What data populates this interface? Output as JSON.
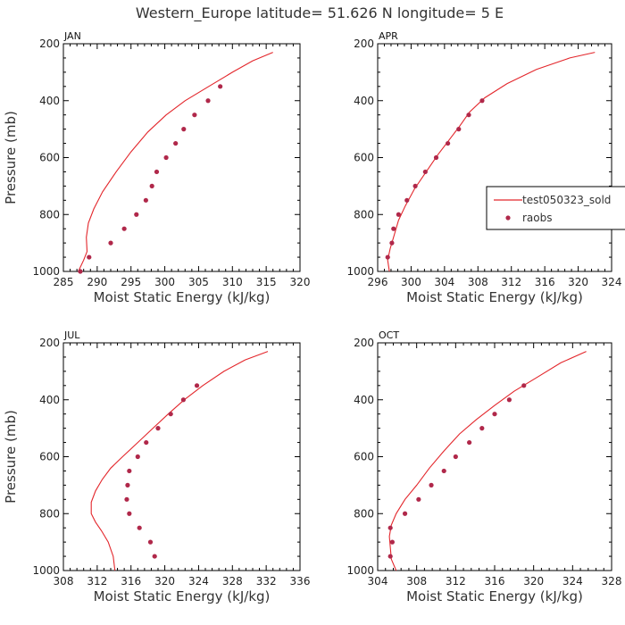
{
  "figure": {
    "title": "Western_Europe  latitude= 51.626 N longitude= 5 E"
  },
  "colors": {
    "model_line": "#e3262b",
    "raobs_marker": "#b0284a",
    "axis": "#000000"
  },
  "legend": {
    "placement": "right of APR panel, near 750 mb",
    "entries": [
      {
        "label": "test050323_sold",
        "marker": "line"
      },
      {
        "label": "raobs",
        "marker": "dot"
      }
    ]
  },
  "chart_data": [
    {
      "type": "line",
      "label": "JAN",
      "xlabel": "Moist Static Energy (kJ/kg)",
      "ylabel": "Pressure (mb)",
      "xlim": [
        285,
        320
      ],
      "ylim": [
        200,
        1000
      ],
      "y_inverted": true,
      "xticks": [
        285,
        290,
        295,
        300,
        305,
        310,
        315,
        320
      ],
      "yticks": [
        200,
        400,
        600,
        800,
        1000
      ],
      "series": [
        {
          "name": "test050323_sold",
          "kind": "line",
          "points": [
            [
              287.2,
              1000
            ],
            [
              288.0,
              960
            ],
            [
              288.5,
              930
            ],
            [
              288.4,
              880
            ],
            [
              288.7,
              830
            ],
            [
              289.5,
              780
            ],
            [
              290.8,
              720
            ],
            [
              292.8,
              650
            ],
            [
              295.0,
              580
            ],
            [
              297.5,
              510
            ],
            [
              300.2,
              450
            ],
            [
              303.0,
              400
            ],
            [
              306.5,
              350
            ],
            [
              310.0,
              300
            ],
            [
              313.0,
              260
            ],
            [
              316.0,
              230
            ]
          ]
        },
        {
          "name": "raobs",
          "kind": "scatter",
          "points": [
            [
              287.5,
              1000
            ],
            [
              288.8,
              950
            ],
            [
              292.0,
              900
            ],
            [
              294.0,
              850
            ],
            [
              295.8,
              800
            ],
            [
              297.2,
              750
            ],
            [
              298.1,
              700
            ],
            [
              298.8,
              650
            ],
            [
              300.2,
              600
            ],
            [
              301.6,
              550
            ],
            [
              302.8,
              500
            ],
            [
              304.4,
              450
            ],
            [
              306.4,
              400
            ],
            [
              308.2,
              350
            ]
          ]
        }
      ]
    },
    {
      "type": "line",
      "label": "APR",
      "xlabel": "Moist Static Energy (kJ/kg)",
      "ylabel": "",
      "xlim": [
        296,
        324
      ],
      "ylim": [
        200,
        1000
      ],
      "y_inverted": true,
      "xticks": [
        296,
        300,
        304,
        308,
        312,
        316,
        320,
        324
      ],
      "yticks": [
        200,
        400,
        600,
        800,
        1000
      ],
      "series": [
        {
          "name": "test050323_sold",
          "kind": "line",
          "points": [
            [
              297.4,
              1000
            ],
            [
              297.2,
              960
            ],
            [
              297.5,
              920
            ],
            [
              298.0,
              870
            ],
            [
              298.5,
              820
            ],
            [
              299.3,
              770
            ],
            [
              300.4,
              710
            ],
            [
              301.8,
              650
            ],
            [
              303.2,
              590
            ],
            [
              304.5,
              540
            ],
            [
              305.8,
              490
            ],
            [
              307.0,
              440
            ],
            [
              308.8,
              390
            ],
            [
              311.5,
              340
            ],
            [
              315.0,
              290
            ],
            [
              319.0,
              250
            ],
            [
              322.0,
              230
            ]
          ]
        },
        {
          "name": "raobs",
          "kind": "scatter",
          "points": [
            [
              297.2,
              950
            ],
            [
              297.7,
              900
            ],
            [
              297.9,
              850
            ],
            [
              298.5,
              800
            ],
            [
              299.5,
              750
            ],
            [
              300.5,
              700
            ],
            [
              301.7,
              650
            ],
            [
              303.0,
              600
            ],
            [
              304.4,
              550
            ],
            [
              305.7,
              500
            ],
            [
              306.9,
              450
            ],
            [
              308.5,
              400
            ]
          ]
        }
      ]
    },
    {
      "type": "line",
      "label": "JUL",
      "xlabel": "Moist Static Energy (kJ/kg)",
      "ylabel": "Pressure (mb)",
      "xlim": [
        308,
        336
      ],
      "ylim": [
        200,
        1000
      ],
      "y_inverted": true,
      "xticks": [
        308,
        312,
        316,
        320,
        324,
        328,
        332,
        336
      ],
      "yticks": [
        200,
        400,
        600,
        800,
        1000
      ],
      "series": [
        {
          "name": "test050323_sold",
          "kind": "line",
          "points": [
            [
              314.1,
              1000
            ],
            [
              313.9,
              950
            ],
            [
              313.3,
              900
            ],
            [
              312.5,
              860
            ],
            [
              311.8,
              830
            ],
            [
              311.3,
              800
            ],
            [
              311.3,
              760
            ],
            [
              311.8,
              720
            ],
            [
              312.6,
              680
            ],
            [
              313.6,
              640
            ],
            [
              315.0,
              600
            ],
            [
              316.8,
              550
            ],
            [
              318.6,
              500
            ],
            [
              320.4,
              450
            ],
            [
              322.3,
              400
            ],
            [
              324.5,
              350
            ],
            [
              327.0,
              300
            ],
            [
              329.5,
              260
            ],
            [
              332.2,
              230
            ]
          ]
        },
        {
          "name": "raobs",
          "kind": "scatter",
          "points": [
            [
              318.8,
              950
            ],
            [
              318.3,
              900
            ],
            [
              317.0,
              850
            ],
            [
              315.8,
              800
            ],
            [
              315.5,
              750
            ],
            [
              315.6,
              700
            ],
            [
              315.8,
              650
            ],
            [
              316.8,
              600
            ],
            [
              317.8,
              550
            ],
            [
              319.2,
              500
            ],
            [
              320.7,
              450
            ],
            [
              322.2,
              400
            ],
            [
              323.8,
              350
            ]
          ]
        }
      ]
    },
    {
      "type": "line",
      "label": "OCT",
      "xlabel": "Moist Static Energy (kJ/kg)",
      "ylabel": "",
      "xlim": [
        304,
        328
      ],
      "ylim": [
        200,
        1000
      ],
      "y_inverted": true,
      "xticks": [
        304,
        308,
        312,
        316,
        320,
        324,
        328
      ],
      "yticks": [
        200,
        400,
        600,
        800,
        1000
      ],
      "series": [
        {
          "name": "test050323_sold",
          "kind": "line",
          "points": [
            [
              305.9,
              1000
            ],
            [
              305.4,
              960
            ],
            [
              305.3,
              920
            ],
            [
              305.2,
              880
            ],
            [
              305.4,
              840
            ],
            [
              305.9,
              800
            ],
            [
              306.8,
              750
            ],
            [
              308.0,
              700
            ],
            [
              309.3,
              640
            ],
            [
              310.8,
              580
            ],
            [
              312.4,
              520
            ],
            [
              314.1,
              470
            ],
            [
              316.0,
              420
            ],
            [
              318.0,
              370
            ],
            [
              320.4,
              320
            ],
            [
              322.8,
              270
            ],
            [
              325.4,
              230
            ]
          ]
        },
        {
          "name": "raobs",
          "kind": "scatter",
          "points": [
            [
              305.3,
              950
            ],
            [
              305.5,
              900
            ],
            [
              305.3,
              850
            ],
            [
              306.8,
              800
            ],
            [
              308.2,
              750
            ],
            [
              309.5,
              700
            ],
            [
              310.8,
              650
            ],
            [
              312.0,
              600
            ],
            [
              313.4,
              550
            ],
            [
              314.7,
              500
            ],
            [
              316.0,
              450
            ],
            [
              317.5,
              400
            ],
            [
              319.0,
              350
            ]
          ]
        }
      ]
    }
  ]
}
